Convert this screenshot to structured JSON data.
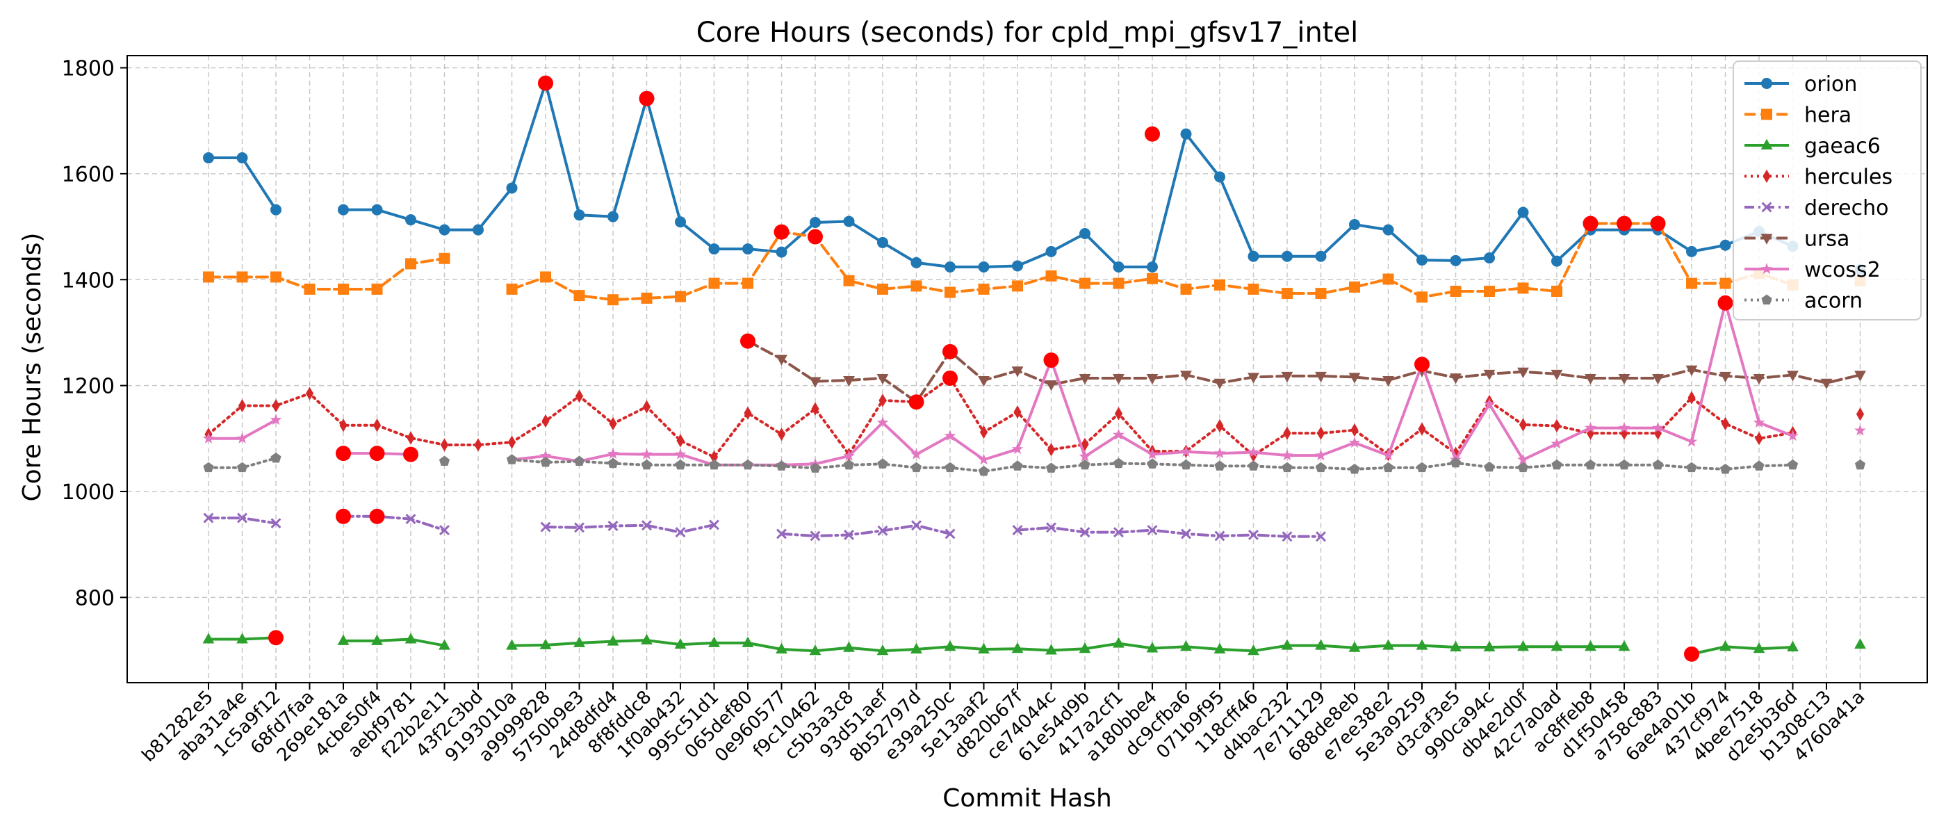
{
  "chart_data": {
    "type": "line",
    "title": "Core Hours (seconds) for cpld_mpi_gfsv17_intel",
    "xlabel": "Commit Hash",
    "ylabel": "Core Hours (seconds)",
    "ylim": [
      639,
      1823
    ],
    "yticks": [
      800,
      1000,
      1200,
      1400,
      1600,
      1800
    ],
    "grid": true,
    "legend_position": "top-right",
    "categories": [
      "b81282e5",
      "aba31a4e",
      "1c5a9f12",
      "68fd7faa",
      "269e181a",
      "4cbe50f4",
      "aebf9781",
      "f22b2e11",
      "43f2c3bd",
      "9193010a",
      "a9999828",
      "5750b9e3",
      "24d8dfd4",
      "8f8fddc8",
      "1f0ab432",
      "995c51d1",
      "065def80",
      "0e960577",
      "f9c10462",
      "c5b3a3c8",
      "93d51aef",
      "8b52797d",
      "e39a250c",
      "5e13aaf2",
      "d820b67f",
      "ce74044c",
      "61e54d9b",
      "417a2cf1",
      "a180bbe4",
      "dc9cfba6",
      "071b9f95",
      "118cff46",
      "d4bac232",
      "7e711129",
      "688de8eb",
      "e7ee38e2",
      "5e3a9259",
      "d3caf3e5",
      "990ca94c",
      "db4e2d0f",
      "42c7a0ad",
      "ac8ffeb8",
      "d1f50458",
      "a758c883",
      "6ae4a01b",
      "437cf974",
      "4bee7518",
      "d2e5b36d",
      "b1308c13",
      "4760a41a"
    ],
    "series": [
      {
        "name": "orion",
        "color": "#1f77b4",
        "marker": "circle",
        "dash": "solid",
        "values": [
          1630,
          1630,
          1532,
          null,
          1532,
          1532,
          1513,
          1494,
          1494,
          1573,
          1771,
          1522,
          1519,
          1742,
          1509,
          1458,
          1458,
          1452,
          1508,
          1510,
          1470,
          1432,
          1424,
          1424,
          1426,
          1453,
          1487,
          1424,
          1424,
          1675,
          1594,
          1444,
          1444,
          1444,
          1504,
          1494,
          1437,
          1436,
          1441,
          1527,
          1435,
          1494,
          1494,
          1494,
          1453,
          1465,
          1491,
          1463,
          null,
          1419
        ]
      },
      {
        "name": "hera",
        "color": "#ff7f0e",
        "marker": "square",
        "dash": "dashed",
        "values": [
          1405,
          1405,
          1405,
          1382,
          1382,
          1382,
          1430,
          1440,
          null,
          1382,
          1405,
          1370,
          1362,
          1365,
          1368,
          1393,
          1393,
          1490,
          1481,
          1398,
          1382,
          1388,
          1376,
          1382,
          1388,
          1407,
          1393,
          1393,
          1402,
          1382,
          1390,
          1382,
          1374,
          1374,
          1386,
          1401,
          1367,
          1378,
          1378,
          1384,
          1378,
          1506,
          1506,
          1506,
          1393,
          1393,
          1412,
          1390,
          null,
          1398
        ]
      },
      {
        "name": "gaeac6",
        "color": "#2ca02c",
        "marker": "triangle-up",
        "dash": "solid",
        "values": [
          721,
          721,
          724,
          null,
          718,
          718,
          721,
          709,
          null,
          709,
          710,
          714,
          717,
          719,
          711,
          714,
          714,
          702,
          699,
          705,
          699,
          702,
          707,
          702,
          703,
          700,
          703,
          713,
          704,
          707,
          702,
          699,
          709,
          709,
          705,
          709,
          709,
          706,
          706,
          707,
          707,
          707,
          707,
          null,
          693,
          707,
          703,
          706,
          null,
          711
        ]
      },
      {
        "name": "hercules",
        "color": "#d62728",
        "marker": "diamond",
        "dash": "dotted",
        "values": [
          1108,
          1162,
          1162,
          1185,
          1125,
          1125,
          1101,
          1088,
          1088,
          1093,
          1133,
          1180,
          1128,
          1160,
          1096,
          1065,
          1148,
          1108,
          1156,
          1070,
          1172,
          1169,
          1214,
          1112,
          1150,
          1079,
          1089,
          1147,
          1076,
          1076,
          1124,
          1068,
          1110,
          1110,
          1116,
          1070,
          1118,
          1072,
          1170,
          1126,
          1124,
          1110,
          1110,
          1110,
          1177,
          1128,
          1100,
          1111,
          null,
          1146
        ]
      },
      {
        "name": "derecho",
        "color": "#9467bd",
        "marker": "x",
        "dash": "dashdot",
        "values": [
          950,
          950,
          940,
          null,
          953,
          953,
          948,
          927,
          null,
          null,
          933,
          932,
          935,
          936,
          923,
          937,
          null,
          920,
          916,
          918,
          926,
          936,
          920,
          null,
          927,
          932,
          923,
          923,
          927,
          920,
          916,
          918,
          915,
          915,
          null,
          null,
          null,
          null,
          null,
          null,
          null,
          null,
          null,
          null,
          null,
          null,
          null,
          null,
          null,
          null
        ]
      },
      {
        "name": "ursa",
        "color": "#8c564b",
        "marker": "triangle-down",
        "dash": "dashed",
        "values": [
          null,
          null,
          null,
          null,
          null,
          null,
          null,
          null,
          null,
          null,
          null,
          null,
          null,
          null,
          null,
          null,
          1284,
          1250,
          1208,
          1210,
          1214,
          1169,
          1264,
          1210,
          1228,
          1202,
          1214,
          1214,
          1214,
          1220,
          1205,
          1216,
          1218,
          1218,
          1216,
          1210,
          1228,
          1215,
          1222,
          1226,
          1222,
          1214,
          1214,
          1214,
          1230,
          1218,
          1214,
          1220,
          1205,
          1220
        ]
      },
      {
        "name": "wcoss2",
        "color": "#e377c2",
        "marker": "star",
        "dash": "solid",
        "values": [
          1100,
          1100,
          1135,
          null,
          1072,
          1072,
          1070,
          null,
          null,
          1060,
          1067,
          1057,
          1071,
          1070,
          1070,
          1050,
          1050,
          1050,
          1052,
          1067,
          1130,
          1070,
          1105,
          1060,
          1080,
          1248,
          1066,
          1107,
          1070,
          1075,
          1072,
          1074,
          1068,
          1068,
          1092,
          1068,
          1240,
          1060,
          1165,
          1060,
          1090,
          1120,
          1120,
          1120,
          1094,
          1356,
          1130,
          1105,
          null,
          1115
        ]
      },
      {
        "name": "acorn",
        "color": "#7f7f7f",
        "marker": "pentagon",
        "dash": "dotted",
        "values": [
          1045,
          1045,
          1063,
          null,
          null,
          null,
          null,
          1057,
          null,
          1060,
          1055,
          1057,
          1053,
          1050,
          1050,
          1050,
          1050,
          1048,
          1044,
          1050,
          1052,
          1045,
          1045,
          1038,
          1048,
          1044,
          1050,
          1053,
          1052,
          1050,
          1048,
          1048,
          1045,
          1045,
          1042,
          1045,
          1045,
          1054,
          1046,
          1045,
          1050,
          1050,
          1050,
          1050,
          1045,
          1042,
          1048,
          1050,
          null,
          1050
        ]
      }
    ],
    "highlights": [
      {
        "series": "orion",
        "x": "a9999828",
        "y": 1771
      },
      {
        "series": "orion",
        "x": "8f8fddc8",
        "y": 1742
      },
      {
        "series": "orion",
        "x": "a180bbe4",
        "y": 1675
      },
      {
        "series": "hera",
        "x": "0e960577",
        "y": 1490
      },
      {
        "series": "hera",
        "x": "f9c10462",
        "y": 1481
      },
      {
        "series": "hera",
        "x": "ac8ffeb8",
        "y": 1506
      },
      {
        "series": "hera",
        "x": "d1f50458",
        "y": 1506
      },
      {
        "series": "hera",
        "x": "a758c883",
        "y": 1506
      },
      {
        "series": "gaeac6",
        "x": "1c5a9f12",
        "y": 724
      },
      {
        "series": "gaeac6",
        "x": "6ae4a01b",
        "y": 693
      },
      {
        "series": "hercules",
        "x": "8b52797d",
        "y": 1169
      },
      {
        "series": "hercules",
        "x": "e39a250c",
        "y": 1214
      },
      {
        "series": "derecho",
        "x": "269e181a",
        "y": 953
      },
      {
        "series": "derecho",
        "x": "4cbe50f4",
        "y": 953
      },
      {
        "series": "ursa",
        "x": "065def80",
        "y": 1284
      },
      {
        "series": "ursa",
        "x": "e39a250c",
        "y": 1264
      },
      {
        "series": "wcoss2",
        "x": "269e181a",
        "y": 1072
      },
      {
        "series": "wcoss2",
        "x": "4cbe50f4",
        "y": 1072
      },
      {
        "series": "wcoss2",
        "x": "aebf9781",
        "y": 1070
      },
      {
        "series": "wcoss2",
        "x": "ce74044c",
        "y": 1248
      },
      {
        "series": "wcoss2",
        "x": "5e3a9259",
        "y": 1240
      },
      {
        "series": "wcoss2",
        "x": "437cf974",
        "y": 1356
      }
    ],
    "highlight_color": "#ff0000"
  }
}
